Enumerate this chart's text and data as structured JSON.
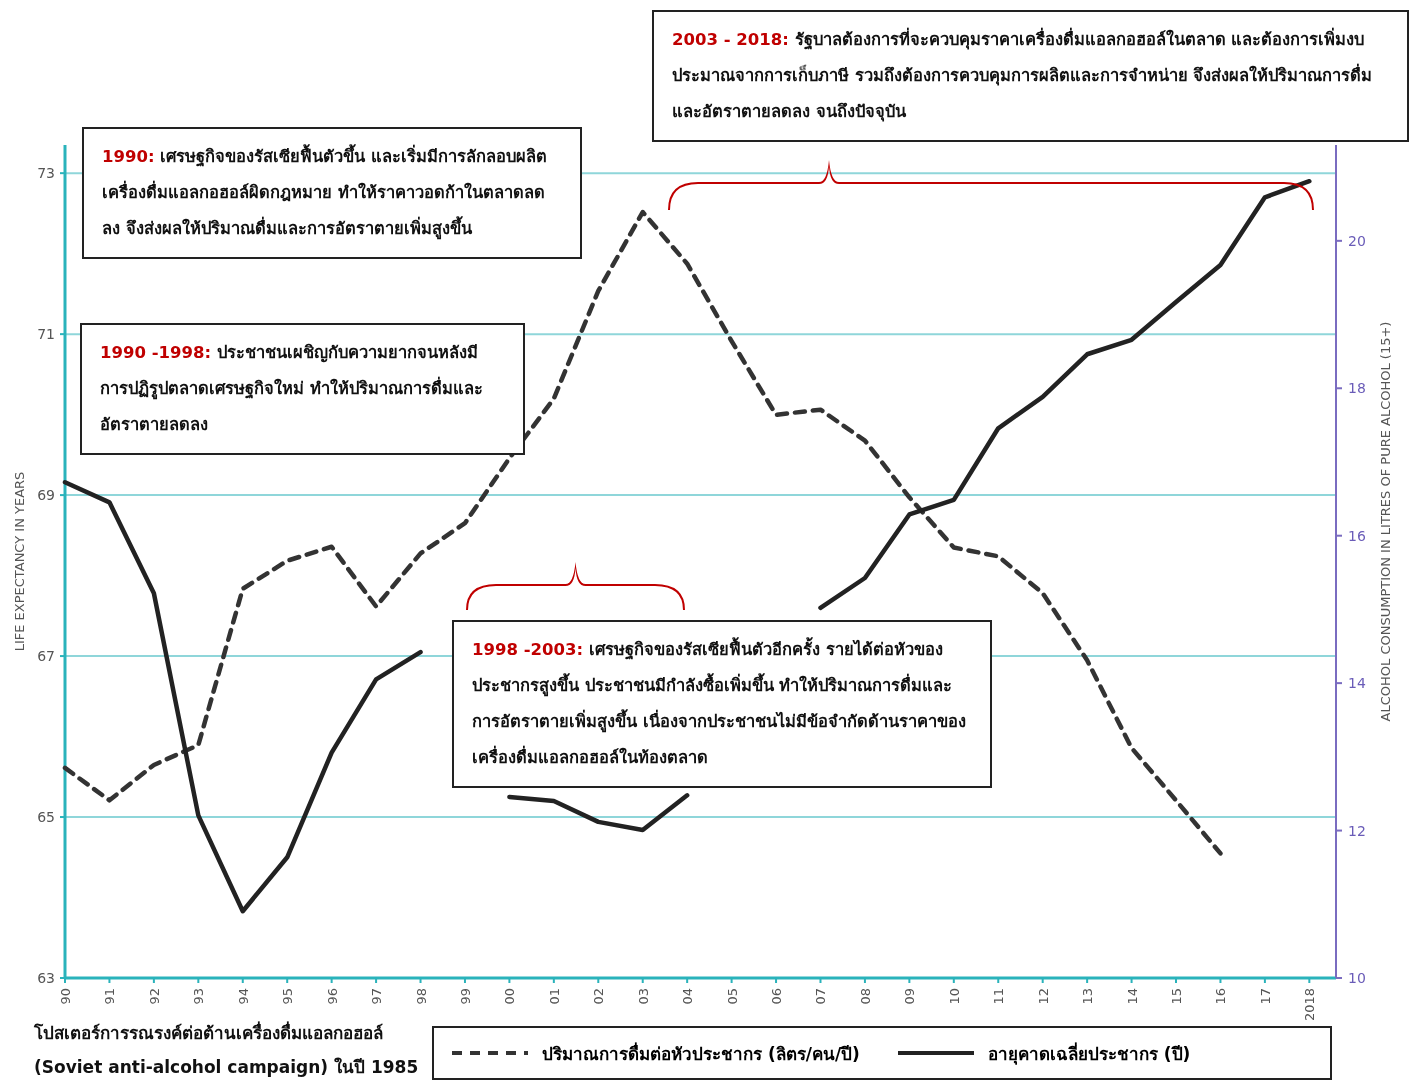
{
  "chart_data": {
    "type": "line",
    "x": [
      1990,
      1991,
      1992,
      1993,
      1994,
      1995,
      1996,
      1997,
      1998,
      1999,
      2000,
      2001,
      2002,
      2003,
      2004,
      2005,
      2006,
      2007,
      2008,
      2009,
      2010,
      2011,
      2012,
      2013,
      2014,
      2015,
      2016,
      2017,
      2018
    ],
    "series": [
      {
        "name": "ปริมาณการดื่มต่อหัวประชากร (ลิตร/คน/ปี)",
        "color": "#333333",
        "line_style": "dashed",
        "axis": "y2",
        "values": [
          12.85,
          12.41,
          12.89,
          13.16,
          15.28,
          15.66,
          15.85,
          15.04,
          15.76,
          16.17,
          17.05,
          17.86,
          19.32,
          20.39,
          19.69,
          18.64,
          17.64,
          17.71,
          17.29,
          16.52,
          15.84,
          15.72,
          15.22,
          14.31,
          13.12,
          12.41,
          11.69,
          null,
          null
        ]
      },
      {
        "name": "อายุคาดเฉลี่ยประชากร (ปี)",
        "color": "#222222",
        "line_style": "solid",
        "values": [
          69.16,
          68.91,
          67.78,
          65.02,
          63.83,
          64.5,
          65.8,
          66.71,
          67.05,
          null,
          65.25,
          65.2,
          64.94,
          64.84,
          65.27,
          null,
          null,
          67.6,
          67.97,
          68.76,
          68.94,
          69.83,
          70.22,
          70.75,
          70.93,
          71.4,
          71.86,
          72.7,
          72.9
        ]
      }
    ],
    "ylabel": "LIFE EXPECTANCY IN YEARS",
    "y2label": "ALCOHOL CONSUMPTION IN LITRES OF PURE ALCOHOL (15+)",
    "xlim": [
      1990,
      2018.6
    ],
    "xticks": [
      {
        "value": 1990,
        "label": "90"
      },
      {
        "value": 1991,
        "label": "91"
      },
      {
        "value": 1992,
        "label": "92"
      },
      {
        "value": 1993,
        "label": "93"
      },
      {
        "value": 1994,
        "label": "94"
      },
      {
        "value": 1995,
        "label": "95"
      },
      {
        "value": 1996,
        "label": "96"
      },
      {
        "value": 1997,
        "label": "97"
      },
      {
        "value": 1998,
        "label": "98"
      },
      {
        "value": 1999,
        "label": "99"
      },
      {
        "value": 2000,
        "label": "00"
      },
      {
        "value": 2001,
        "label": "01"
      },
      {
        "value": 2002,
        "label": "02"
      },
      {
        "value": 2003,
        "label": "03"
      },
      {
        "value": 2004,
        "label": "04"
      },
      {
        "value": 2005,
        "label": "05"
      },
      {
        "value": 2006,
        "label": "06"
      },
      {
        "value": 2007,
        "label": "07"
      },
      {
        "value": 2008,
        "label": "08"
      },
      {
        "value": 2009,
        "label": "09"
      },
      {
        "value": 2010,
        "label": "10"
      },
      {
        "value": 2011,
        "label": "11"
      },
      {
        "value": 2012,
        "label": "12"
      },
      {
        "value": 2013,
        "label": "13"
      },
      {
        "value": 2014,
        "label": "14"
      },
      {
        "value": 2015,
        "label": "15"
      },
      {
        "value": 2016,
        "label": "16"
      },
      {
        "value": 2017,
        "label": "17"
      },
      {
        "value": 2018,
        "label": "2018"
      }
    ],
    "ylim": [
      63,
      73.35
    ],
    "yticks": [
      63,
      65,
      67,
      69,
      71,
      73
    ],
    "y2lim": [
      10,
      21.3
    ],
    "y2ticks": [
      10,
      12,
      14,
      16,
      18,
      20
    ],
    "grid": "y",
    "legend": "bottom",
    "annotations": [
      "2003 - 2018: รัฐบาลต้องการที่จะควบคุมราคาเครื่องดื่มแอลกอฮอล์ในตลาด และต้องการเพิ่มงบประมาณจากการเก็บภาษี รวมถึงต้องการควบคุมการผลิตและการจำหน่าย จึงส่งผลให้ปริมาณการดื่มและอัตราตายลดลง จนถึงปัจจุบัน",
      "1990: เศรษฐกิจของรัสเซียฟื้นตัวขึ้น และเริ่มมีการลักลอบผลิตเครื่องดื่มแอลกอฮอล์ผิดกฎหมาย ทำให้ราคาวอดก้าในตลาดลดลง จึงส่งผลให้ปริมาณดื่มและการอัตราตายเพิ่มสูงขึ้น",
      "1990 -1998: ประชาชนเผชิญกับความยากจนหลังมีการปฏิรูปตลาดเศรษฐกิจใหม่ ทำให้ปริมาณการดื่มและอัตราตายลดลง",
      "1998 -2003: เศรษฐกิจของรัสเซียฟื้นตัวอีกครั้ง รายได้ต่อหัวของประชากรสูงขึ้น ประชาชนมีกำลังซื้อเพิ่มขึ้น ทำให้ปริมาณการดื่มและการอัตราตายเพิ่มสูงขึ้น เนื่องจากประชาชนไม่มีข้อจำกัดด้านราคาของเครื่องดื่มแอลกอฮอล์ในท้องตลาด",
      "โปสเตอร์การรณรงค์ต่อต้านเครื่องดื่มแอลกอฮอล์ (Soviet anti-alcohol campaign) ในปี 1985"
    ]
  }
}
